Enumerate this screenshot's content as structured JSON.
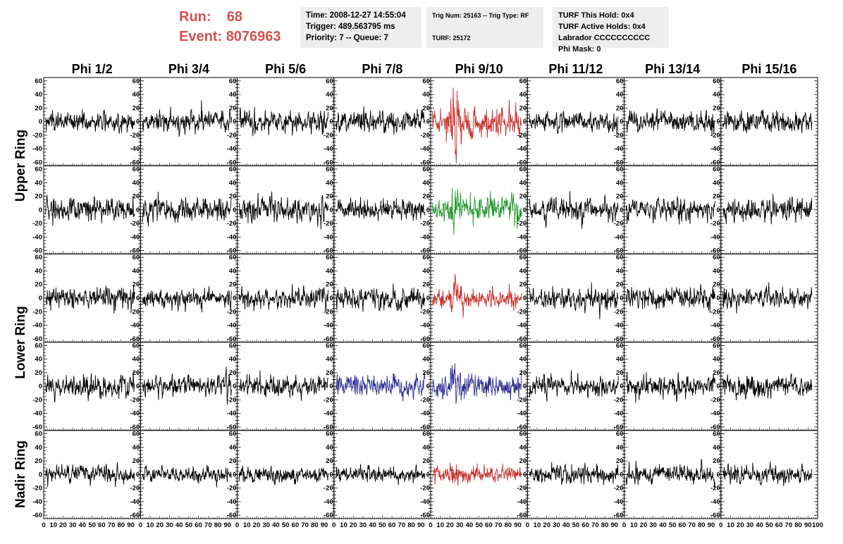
{
  "header": {
    "run_label": "Run:",
    "run_value": "68",
    "event_label": "Event:",
    "event_value": "8076963"
  },
  "info_boxes": [
    {
      "lines": [
        "Time: 2008-12-27 14:55:04",
        "Trigger: 489.563795 ms",
        "Priority: 7 -- Queue: 7"
      ]
    },
    {
      "lines": [
        "Trig Num: 25163 -- Trig Type: RF",
        "",
        "TURF: 25172"
      ]
    },
    {
      "lines": [
        "TURF This Hold: 0x4",
        "TURF Active Holds: 0x4",
        "Labrador CCCCCCCCCC",
        "Phi Mask: 0"
      ]
    }
  ],
  "colors": {
    "header_red": "#d35050",
    "box_bg": "#eeeeee",
    "default_trace": "#000000",
    "red_trace": "#c8302c",
    "green_trace": "#21962a",
    "blue_trace": "#2d2f93"
  },
  "chart_data": {
    "type": "line",
    "column_headers": [
      "Phi 1/2",
      "Phi 3/4",
      "Phi 5/6",
      "Phi 7/8",
      "Phi 9/10",
      "Phi 11/12",
      "Phi 13/14",
      "Phi 15/16"
    ],
    "row_labels": [
      {
        "text": "Upper Ring",
        "spans_rows": [
          0,
          1
        ]
      },
      {
        "text": "Lower Ring",
        "spans_rows": [
          2,
          3
        ]
      },
      {
        "text": "Nadir Ring",
        "spans_rows": [
          4,
          4
        ]
      }
    ],
    "xlim": [
      0,
      100
    ],
    "ylim": [
      -65,
      65
    ],
    "y_ticks": [
      -60,
      -40,
      -20,
      0,
      20,
      40,
      60
    ],
    "x_tick_labels": [
      "0",
      "10",
      "20",
      "30",
      "40",
      "50",
      "60",
      "70",
      "80",
      "90",
      "100"
    ],
    "samples_per_trace": 260,
    "grid": false,
    "legend": "none",
    "panels_rows": 5,
    "panels_cols": 8,
    "trace_color_map": [
      [
        "default",
        "default",
        "default",
        "default",
        "red",
        "default",
        "default",
        "default"
      ],
      [
        "default",
        "default",
        "default",
        "default",
        "green",
        "default",
        "default",
        "default"
      ],
      [
        "default",
        "default",
        "default",
        "default",
        "red",
        "default",
        "default",
        "default"
      ],
      [
        "default",
        "default",
        "default",
        "blue",
        "blue",
        "default",
        "default",
        "default"
      ],
      [
        "default",
        "default",
        "default",
        "default",
        "red",
        "default",
        "default",
        "default"
      ]
    ],
    "trace_amplitude_rms": [
      [
        10,
        11,
        12,
        11,
        17,
        10,
        12,
        11
      ],
      [
        13,
        13,
        13,
        12,
        14,
        12,
        12,
        12
      ],
      [
        11,
        10,
        11,
        11,
        10,
        11,
        11,
        10
      ],
      [
        12,
        11,
        11,
        11,
        12,
        10,
        11,
        12
      ],
      [
        9,
        8,
        8,
        8,
        8,
        10,
        9,
        9
      ]
    ]
  }
}
